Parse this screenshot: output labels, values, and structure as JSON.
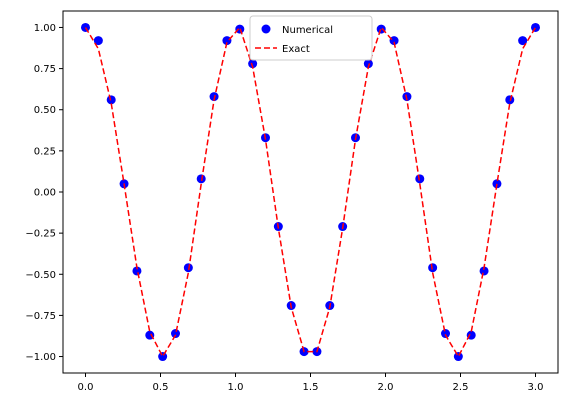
{
  "chart_data": {
    "type": "line",
    "title": "",
    "xlabel": "",
    "ylabel": "",
    "xlim": [
      -0.15,
      3.15
    ],
    "ylim": [
      -1.1,
      1.1
    ],
    "grid": false,
    "legend_position": "top-center",
    "x_ticks": [
      0.0,
      0.5,
      1.0,
      1.5,
      2.0,
      2.5,
      3.0
    ],
    "x_tick_labels": [
      "0.0",
      "0.5",
      "1.0",
      "1.5",
      "2.0",
      "2.5",
      "3.0"
    ],
    "y_ticks": [
      1.0,
      0.75,
      0.5,
      0.25,
      0.0,
      -0.25,
      -0.5,
      -0.75,
      -1.0
    ],
    "y_tick_labels": [
      "1.00",
      "0.75",
      "0.50",
      "0.25",
      "0.00",
      "−0.25",
      "−0.50",
      "−0.75",
      "−1.00"
    ],
    "series": [
      {
        "name": "Numerical",
        "style": "markers",
        "color": "#0000ff",
        "x": [
          0.0,
          0.0857,
          0.1714,
          0.2571,
          0.3429,
          0.4286,
          0.5143,
          0.6,
          0.6857,
          0.7714,
          0.8571,
          0.9429,
          1.0286,
          1.1143,
          1.2,
          1.2857,
          1.3714,
          1.4571,
          1.5429,
          1.6286,
          1.7143,
          1.8,
          1.8857,
          1.9714,
          2.0571,
          2.1429,
          2.2286,
          2.3143,
          2.4,
          2.4857,
          2.5714,
          2.6571,
          2.7429,
          2.8286,
          2.9143,
          3.0
        ],
        "y": [
          1.0,
          0.92,
          0.56,
          0.05,
          -0.48,
          -0.87,
          -1.0,
          -0.86,
          -0.46,
          0.08,
          0.58,
          0.92,
          0.99,
          0.78,
          0.33,
          -0.21,
          -0.69,
          -0.97,
          -0.97,
          -0.69,
          -0.21,
          0.33,
          0.78,
          0.99,
          0.92,
          0.58,
          0.08,
          -0.46,
          -0.86,
          -1.0,
          -0.87,
          -0.48,
          0.05,
          0.56,
          0.92,
          1.0
        ]
      },
      {
        "name": "Exact",
        "style": "dashed-line",
        "color": "#ff0000",
        "x": [
          0.0,
          0.0857,
          0.1714,
          0.2571,
          0.3429,
          0.4286,
          0.5143,
          0.6,
          0.6857,
          0.7714,
          0.8571,
          0.9429,
          1.0286,
          1.1143,
          1.2,
          1.2857,
          1.3714,
          1.4571,
          1.5429,
          1.6286,
          1.7143,
          1.8,
          1.8857,
          1.9714,
          2.0571,
          2.1429,
          2.2286,
          2.3143,
          2.4,
          2.4857,
          2.5714,
          2.6571,
          2.7429,
          2.8286,
          2.9143,
          3.0
        ],
        "y": [
          1.0,
          0.87,
          0.54,
          0.05,
          -0.46,
          -0.85,
          -1.0,
          -0.87,
          -0.49,
          0.05,
          0.56,
          0.91,
          1.0,
          0.76,
          0.32,
          -0.22,
          -0.7,
          -0.97,
          -0.97,
          -0.7,
          -0.22,
          0.32,
          0.76,
          1.0,
          0.91,
          0.56,
          0.05,
          -0.49,
          -0.87,
          -1.0,
          -0.85,
          -0.46,
          0.05,
          0.54,
          0.87,
          1.0
        ]
      }
    ]
  }
}
